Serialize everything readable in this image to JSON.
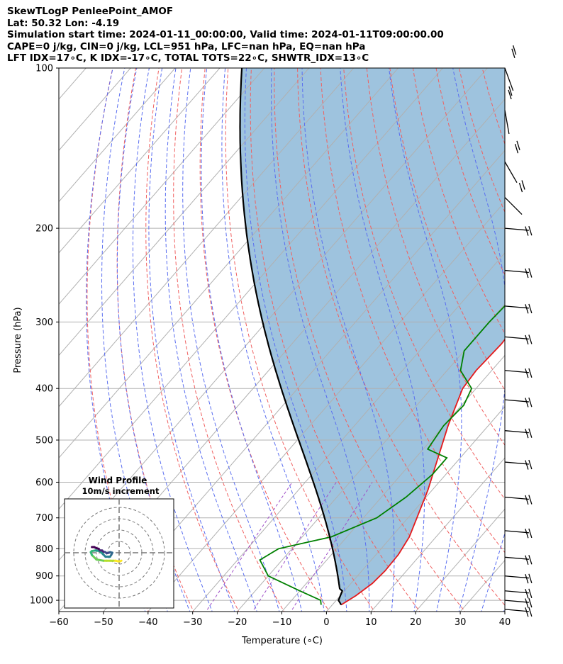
{
  "header": {
    "line1": "SkewTLogP PenleePoint_AMOF",
    "line2": "Lat: 50.32   Lon: -4.19",
    "line3": "Simulation start time: 2024-01-11_00:00:00, Valid time: 2024-01-11T09:00:00.00",
    "line4": "CAPE=0 j/kg, CIN=0 j/kg, LCL=951 hPa, LFC=nan hPa, EQ=nan hPa",
    "line5": "LFT IDX=17∘C, K IDX=-17∘C, TOTAL TOTS=22∘C, SHWTR_IDX=13∘C"
  },
  "chart_data": [
    {
      "type": "line",
      "subtype": "skew-t log-p",
      "xlabel": "Temperature (∘C)",
      "ylabel": "Pressure (hPa)",
      "xlim": [
        -60,
        40
      ],
      "ylim": [
        1050,
        100
      ],
      "y_scale": "log",
      "x_ticks": [
        "−60",
        "−50",
        "−40",
        "−30",
        "−20",
        "−10",
        "0",
        "10",
        "20",
        "30",
        "40"
      ],
      "y_ticks": [
        "100",
        "200",
        "300",
        "400",
        "500",
        "600",
        "700",
        "800",
        "900",
        "1000"
      ],
      "grid": true,
      "series": [
        {
          "role": "temperature",
          "color": "#e41a1c",
          "x": [
            2.0,
            3.5,
            4.8,
            5.2,
            5.0,
            4.0,
            2.0,
            -1.0,
            -5.0,
            -9.0,
            -13.0,
            -13.5,
            -13.0,
            -13.5,
            -13.0,
            -11.5,
            -8.0,
            -3.5,
            -3.0,
            -1.0,
            1.0,
            2.5,
            3.0,
            3.5,
            4.5,
            4.0
          ],
          "p": [
            1020,
            980,
            930,
            880,
            820,
            760,
            700,
            620,
            540,
            470,
            400,
            370,
            330,
            300,
            270,
            240,
            205,
            190,
            165,
            150,
            140,
            130,
            120,
            110,
            105,
            100
          ]
        },
        {
          "role": "dewpoint",
          "color": "#008000",
          "x": [
            -2.5,
            -3.5,
            -10.0,
            -20.0,
            -25.0,
            -23.0,
            -13.5,
            -7.0,
            -4.5,
            -3.0,
            -3.0,
            -9.0,
            -10.0,
            -9.5,
            -11.0,
            -17.0,
            -20.0,
            -20.0,
            -19.5,
            -20.0,
            -21.0,
            -20.5,
            -19.0,
            -17.5,
            -16.5,
            -15.5,
            -14.0,
            -12.0,
            -10.0
          ],
          "p": [
            1020,
            1000,
            960,
            900,
            840,
            800,
            760,
            700,
            640,
            580,
            540,
            520,
            470,
            430,
            400,
            370,
            340,
            300,
            270,
            240,
            200,
            185,
            165,
            150,
            140,
            130,
            120,
            110,
            100
          ]
        },
        {
          "role": "parcel",
          "color": "#000000",
          "x": [
            2.0,
            0.5,
            -0.5,
            -1.5
          ],
          "p": [
            1020,
            1000,
            960,
            951
          ]
        }
      ],
      "wind_barbs": {
        "color": "#000000",
        "p": [
          100,
          120,
          150,
          175,
          200,
          240,
          280,
          320,
          370,
          420,
          480,
          550,
          640,
          740,
          830,
          900,
          960,
          1000,
          1040
        ]
      }
    },
    {
      "type": "line",
      "subtype": "hodograph",
      "title": "Wind Profile",
      "subtitle": "10m/s increment",
      "rings": [
        10,
        20,
        30,
        40
      ],
      "colormap": "viridis",
      "u": [
        2.0,
        1.0,
        -1.0,
        -3.0,
        -5.0,
        -8.0,
        -11.0,
        -14.0,
        -17.0,
        -20.0,
        -24.0,
        -25.0,
        -24.0,
        -21.0,
        -17.0,
        -16.0,
        -14.0,
        -12.0,
        -8.0,
        -7.0,
        -6.0,
        -8.0,
        -9.0,
        -11.0,
        -12.0,
        -14.0,
        -15.0,
        -17.0,
        -18.0,
        -20.0,
        -22.0,
        -24.0
      ],
      "v": [
        -7.0,
        -7.5,
        -7.5,
        -7.0,
        -7.0,
        -7.0,
        -7.0,
        -7.0,
        -6.5,
        -6.0,
        -2.0,
        0.5,
        1.5,
        2.0,
        1.5,
        0.5,
        -1.5,
        -3.5,
        -3.5,
        -2.0,
        0.0,
        0.5,
        0.0,
        -0.5,
        0.5,
        1.0,
        2.0,
        2.0,
        3.5,
        4.0,
        5.0,
        5.0
      ]
    }
  ]
}
